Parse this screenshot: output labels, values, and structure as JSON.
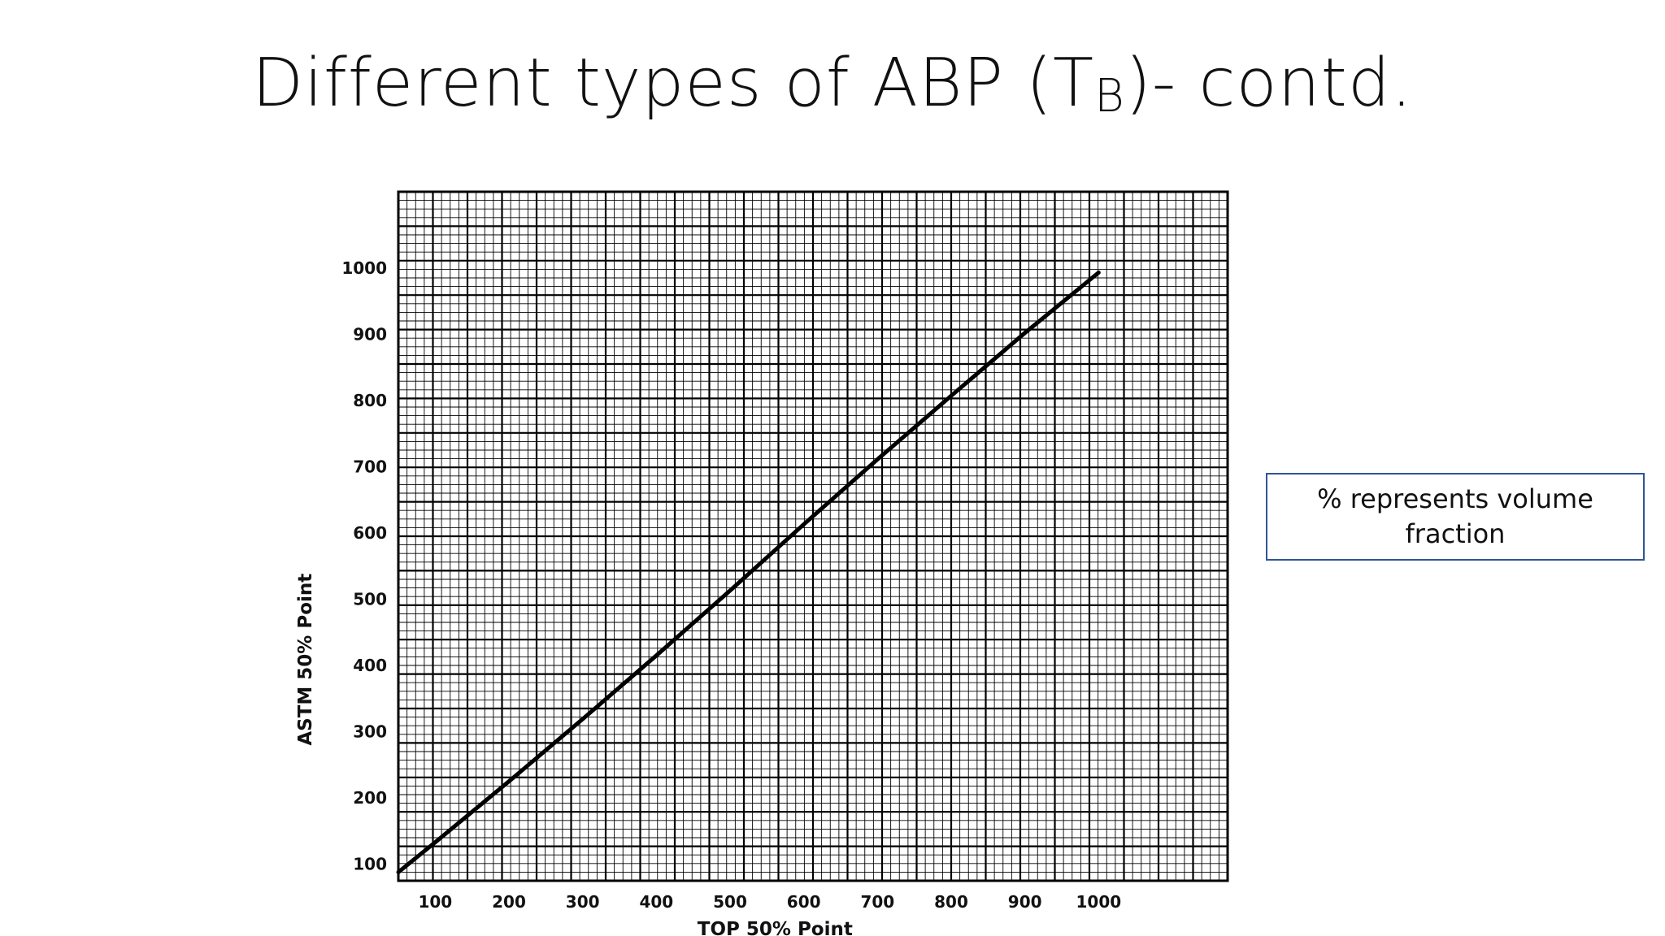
{
  "slide": {
    "title_main": "Different types of ABP (T",
    "title_sub": "B",
    "title_tail": ")- contd."
  },
  "note": {
    "text": "% represents volume fraction"
  },
  "chart_data": {
    "type": "line",
    "title": "",
    "xlabel": "TOP 50% Point",
    "ylabel": "ASTM 50% Point",
    "xlim": [
      50,
      1175
    ],
    "ylim": [
      75,
      1115
    ],
    "x_ticks": [
      100,
      200,
      300,
      400,
      500,
      600,
      700,
      800,
      900,
      1000
    ],
    "y_ticks": [
      100,
      200,
      300,
      400,
      500,
      600,
      700,
      800,
      900,
      1000
    ],
    "grid": true,
    "series": [
      {
        "x": [
          50,
          100,
          200,
          300,
          400,
          500,
          600,
          700,
          800,
          900,
          1000
        ],
        "y": [
          88,
          133,
          225,
          319,
          415,
          513,
          613,
          711,
          807,
          902,
          993
        ]
      }
    ]
  }
}
